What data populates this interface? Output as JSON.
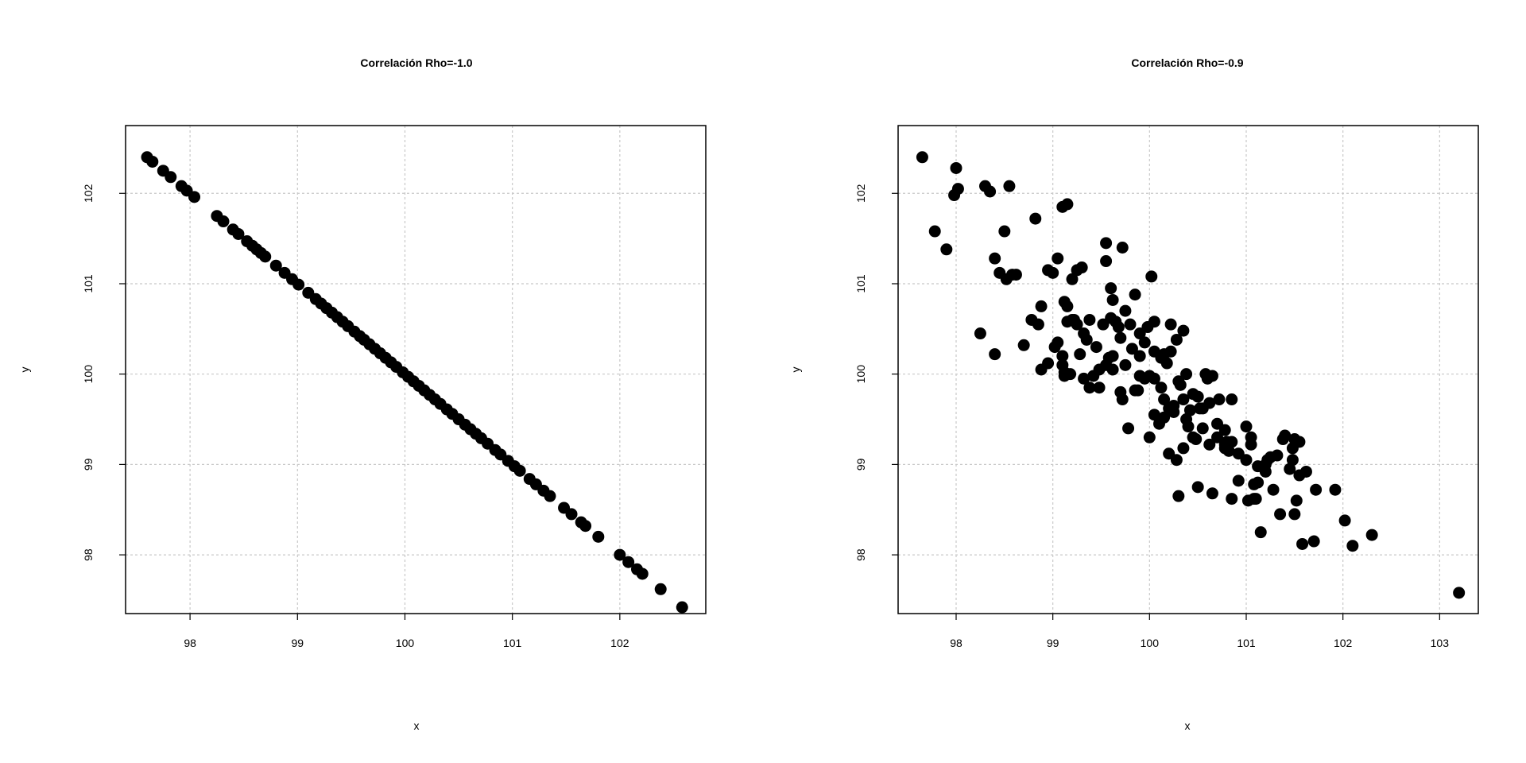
{
  "chart_data": [
    {
      "type": "scatter",
      "title": "Correlación Rho=-1.0",
      "xlabel": "x",
      "ylabel": "y",
      "xlim": [
        97.4,
        102.8
      ],
      "ylim": [
        97.35,
        102.75
      ],
      "xticks": [
        98,
        99,
        100,
        101,
        102
      ],
      "yticks": [
        98,
        99,
        100,
        101,
        102
      ],
      "grid": true,
      "color": "#000000",
      "x": [
        97.6,
        97.65,
        97.75,
        97.82,
        97.92,
        97.97,
        98.04,
        98.25,
        98.31,
        98.4,
        98.45,
        98.53,
        98.58,
        98.62,
        98.66,
        98.7,
        98.8,
        98.88,
        98.95,
        99.01,
        99.1,
        99.17,
        99.22,
        99.27,
        99.32,
        99.37,
        99.42,
        99.47,
        99.53,
        99.58,
        99.62,
        99.67,
        99.72,
        99.77,
        99.82,
        99.87,
        99.92,
        99.98,
        100.03,
        100.08,
        100.13,
        100.18,
        100.23,
        100.28,
        100.33,
        100.39,
        100.44,
        100.5,
        100.56,
        100.61,
        100.66,
        100.71,
        100.77,
        100.84,
        100.89,
        100.96,
        101.02,
        101.07,
        101.16,
        101.22,
        101.29,
        101.35,
        101.48,
        101.55,
        101.64,
        101.68,
        101.8,
        102.0,
        102.08,
        102.16,
        102.21,
        102.38,
        102.58
      ],
      "y": [
        102.4,
        102.35,
        102.25,
        102.18,
        102.08,
        102.03,
        101.96,
        101.75,
        101.69,
        101.6,
        101.55,
        101.47,
        101.42,
        101.38,
        101.34,
        101.3,
        101.2,
        101.12,
        101.05,
        100.99,
        100.9,
        100.83,
        100.78,
        100.73,
        100.68,
        100.63,
        100.58,
        100.53,
        100.47,
        100.42,
        100.38,
        100.33,
        100.28,
        100.23,
        100.18,
        100.13,
        100.08,
        100.02,
        99.97,
        99.92,
        99.87,
        99.82,
        99.77,
        99.72,
        99.67,
        99.61,
        99.56,
        99.5,
        99.44,
        99.39,
        99.34,
        99.29,
        99.23,
        99.16,
        99.11,
        99.04,
        98.98,
        98.93,
        98.84,
        98.78,
        98.71,
        98.65,
        98.52,
        98.45,
        98.36,
        98.32,
        98.2,
        98.0,
        97.92,
        97.84,
        97.79,
        97.62,
        97.42
      ]
    },
    {
      "type": "scatter",
      "title": "Correlación Rho=-0.9",
      "xlabel": "x",
      "ylabel": "y",
      "xlim": [
        97.4,
        103.4
      ],
      "ylim": [
        97.35,
        102.75
      ],
      "xticks": [
        98,
        99,
        100,
        101,
        102,
        103
      ],
      "yticks": [
        98,
        99,
        100,
        101,
        102
      ],
      "grid": true,
      "color": "#000000",
      "x": [
        97.65,
        97.78,
        97.9,
        97.98,
        98.0,
        98.02,
        98.3,
        98.35,
        98.4,
        98.45,
        98.5,
        98.52,
        98.55,
        98.62,
        98.25,
        98.4,
        98.7,
        98.78,
        98.85,
        98.88,
        98.95,
        99.02,
        99.05,
        99.1,
        99.12,
        99.15,
        99.2,
        99.25,
        99.3,
        98.82,
        98.88,
        99.0,
        99.1,
        99.15,
        99.2,
        99.25,
        99.32,
        99.38,
        99.45,
        99.52,
        99.55,
        99.6,
        99.62,
        99.65,
        99.7,
        99.72,
        99.75,
        99.8,
        99.85,
        99.9,
        99.95,
        100.02,
        99.55,
        99.62,
        99.68,
        99.75,
        99.82,
        99.9,
        100.0,
        100.05,
        100.12,
        100.18,
        100.22,
        100.28,
        100.35,
        100.38,
        100.05,
        100.1,
        100.15,
        100.2,
        100.25,
        100.3,
        100.35,
        100.42,
        100.5,
        100.55,
        100.62,
        100.7,
        100.78,
        100.85,
        100.2,
        100.28,
        100.35,
        100.45,
        100.55,
        100.62,
        100.7,
        100.78,
        100.85,
        100.92,
        101.0,
        101.05,
        101.12,
        101.2,
        101.25,
        101.32,
        101.4,
        101.48,
        101.55,
        101.62,
        100.3,
        100.5,
        100.65,
        100.85,
        101.02,
        101.08,
        101.15,
        101.28,
        101.35,
        101.45,
        101.52,
        101.58,
        101.7,
        101.92,
        102.02,
        102.1,
        102.3,
        101.55,
        101.72,
        103.2,
        99.1,
        99.38,
        99.58,
        99.72,
        99.88,
        99.12,
        99.28,
        99.48,
        99.7,
        99.9,
        100.0,
        100.4,
        100.6,
        100.8,
        101.08,
        100.05,
        100.15,
        100.32,
        100.48,
        100.72,
        100.92,
        101.05,
        101.2,
        101.38,
        101.5,
        99.05,
        99.12,
        99.32,
        99.48,
        99.55,
        99.62,
        99.98,
        100.05,
        100.22,
        100.12,
        100.25,
        99.15,
        99.6,
        100.45,
        100.65,
        100.82,
        101.0,
        101.22,
        98.58,
        99.22,
        99.95,
        100.58,
        99.18,
        99.42,
        99.78,
        100.15,
        100.38,
        100.78,
        101.12,
        101.5,
        98.95,
        99.35,
        99.85,
        100.52,
        101.1,
        101.48
      ],
      "y": [
        102.4,
        101.58,
        101.38,
        101.98,
        102.28,
        102.05,
        102.08,
        102.02,
        101.28,
        101.12,
        101.58,
        101.05,
        102.08,
        101.1,
        100.45,
        100.22,
        100.32,
        100.6,
        100.55,
        100.75,
        100.12,
        100.3,
        101.28,
        101.85,
        100.8,
        101.88,
        101.05,
        101.15,
        101.18,
        101.72,
        100.05,
        101.12,
        100.1,
        100.75,
        100.6,
        100.55,
        100.45,
        100.6,
        100.3,
        100.55,
        101.25,
        100.95,
        100.82,
        100.58,
        100.4,
        101.4,
        100.7,
        100.55,
        100.88,
        100.45,
        100.35,
        101.08,
        101.45,
        100.2,
        100.52,
        100.1,
        100.28,
        100.2,
        99.98,
        100.25,
        100.18,
        100.12,
        100.25,
        100.38,
        100.48,
        100.0,
        99.55,
        99.45,
        99.52,
        99.62,
        99.58,
        99.92,
        99.72,
        99.6,
        99.75,
        99.62,
        99.68,
        99.45,
        99.38,
        99.72,
        99.12,
        99.05,
        99.18,
        99.3,
        99.4,
        99.22,
        99.3,
        99.18,
        99.25,
        99.12,
        99.05,
        99.3,
        98.98,
        99.0,
        99.08,
        99.1,
        99.32,
        99.18,
        99.25,
        98.92,
        98.65,
        98.75,
        98.68,
        98.62,
        98.6,
        98.78,
        98.25,
        98.72,
        98.45,
        98.95,
        98.6,
        98.12,
        98.15,
        98.72,
        98.38,
        98.1,
        98.22,
        98.88,
        98.72,
        97.58,
        100.2,
        99.85,
        100.18,
        99.72,
        99.82,
        99.98,
        100.22,
        99.85,
        99.8,
        99.98,
        99.3,
        99.42,
        99.95,
        99.25,
        98.62,
        99.95,
        99.72,
        99.88,
        99.28,
        99.72,
        98.82,
        99.22,
        98.92,
        99.28,
        99.28,
        100.35,
        100.02,
        99.95,
        100.05,
        100.1,
        100.05,
        100.52,
        100.58,
        100.55,
        99.85,
        99.65,
        100.58,
        100.62,
        99.78,
        99.98,
        99.15,
        99.42,
        99.05,
        101.1,
        100.6,
        99.95,
        100.0,
        100.0,
        99.98,
        99.4,
        100.22,
        99.5,
        99.22,
        98.8,
        98.45,
        101.15,
        100.38,
        99.82,
        99.62,
        98.62,
        99.05
      ]
    }
  ]
}
